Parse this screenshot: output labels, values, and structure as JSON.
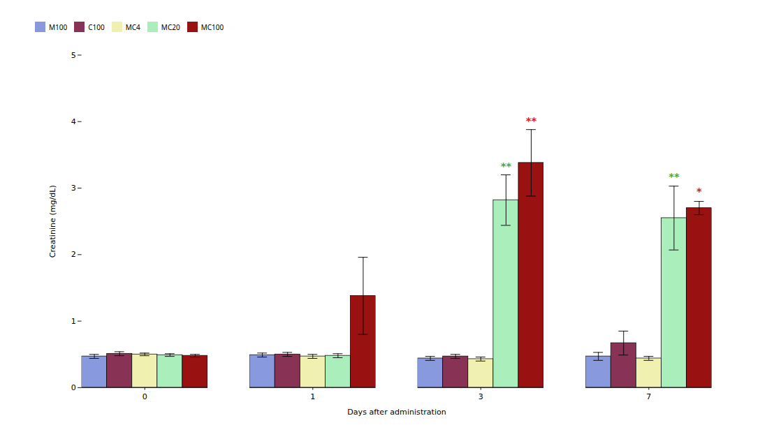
{
  "chart_data": {
    "type": "bar",
    "xlabel": "Days after administration",
    "ylabel": "Creatinine (mg/dL)",
    "categories": [
      "0",
      "1",
      "3",
      "7"
    ],
    "series": [
      {
        "name": "M100",
        "color": "#8899dd",
        "values": [
          0.47,
          0.49,
          0.44,
          0.47
        ],
        "errors": [
          0.03,
          0.03,
          0.03,
          0.06
        ]
      },
      {
        "name": "C100",
        "color": "#883355",
        "values": [
          0.51,
          0.5,
          0.47,
          0.67
        ],
        "errors": [
          0.03,
          0.03,
          0.03,
          0.18
        ]
      },
      {
        "name": "MC4",
        "color": "#f0f0b0",
        "values": [
          0.5,
          0.47,
          0.43,
          0.44
        ],
        "errors": [
          0.02,
          0.03,
          0.03,
          0.03
        ]
      },
      {
        "name": "MC20",
        "color": "#aaeebb",
        "values": [
          0.49,
          0.48,
          2.82,
          2.55
        ],
        "errors": [
          0.02,
          0.03,
          0.38,
          0.48
        ]
      },
      {
        "name": "MC100",
        "color": "#991111",
        "values": [
          0.48,
          1.38,
          3.38,
          2.7
        ],
        "errors": [
          0.02,
          0.58,
          0.5,
          0.1
        ]
      }
    ],
    "annotations": [
      {
        "text": "**",
        "color": "#44aa44",
        "category": "3",
        "series": "MC20",
        "y": 3.28
      },
      {
        "text": "**",
        "color": "#cc2222",
        "category": "3",
        "series": "MC100",
        "y": 3.96
      },
      {
        "text": "**",
        "color": "#44aa44",
        "category": "7",
        "series": "MC20",
        "y": 3.12
      },
      {
        "text": "*",
        "color": "#cc2222",
        "category": "7",
        "series": "MC100",
        "y": 2.9
      }
    ],
    "ylim": [
      0,
      5
    ],
    "yticks": [
      0,
      1,
      2,
      3,
      4,
      5
    ],
    "grid": false,
    "legend": "upper left"
  }
}
